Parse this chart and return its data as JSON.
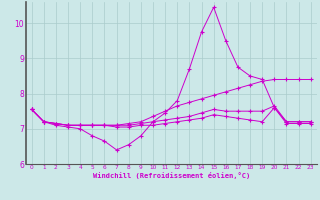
{
  "xlabel": "Windchill (Refroidissement éolien,°C)",
  "bg_color": "#cce8e8",
  "grid_color": "#aacccc",
  "line_color": "#cc00cc",
  "xmin": 0,
  "xmax": 23,
  "ymin": 6,
  "ymax": 10.6,
  "yticks": [
    6,
    7,
    8,
    9,
    10
  ],
  "line1_x": [
    0,
    1,
    2,
    3,
    4,
    5,
    6,
    7,
    8,
    9,
    10,
    11,
    12,
    13,
    14,
    15,
    16,
    17,
    18,
    19,
    20,
    21,
    22,
    23
  ],
  "line1_y": [
    7.55,
    7.2,
    7.1,
    7.05,
    7.0,
    6.8,
    6.65,
    6.4,
    6.55,
    6.8,
    7.2,
    7.45,
    7.8,
    8.7,
    9.75,
    10.45,
    9.5,
    8.75,
    8.5,
    8.4,
    7.6,
    7.2,
    7.2,
    7.2
  ],
  "line2_x": [
    0,
    1,
    2,
    3,
    4,
    5,
    6,
    7,
    8,
    9,
    10,
    11,
    12,
    13,
    14,
    15,
    16,
    17,
    18,
    19,
    20,
    21,
    22,
    23
  ],
  "line2_y": [
    7.55,
    7.2,
    7.15,
    7.1,
    7.1,
    7.1,
    7.1,
    7.1,
    7.15,
    7.2,
    7.35,
    7.5,
    7.65,
    7.75,
    7.85,
    7.95,
    8.05,
    8.15,
    8.25,
    8.35,
    8.4,
    8.4,
    8.4,
    8.4
  ],
  "line3_x": [
    0,
    1,
    2,
    3,
    4,
    5,
    6,
    7,
    8,
    9,
    10,
    11,
    12,
    13,
    14,
    15,
    16,
    17,
    18,
    19,
    20,
    21,
    22,
    23
  ],
  "line3_y": [
    7.55,
    7.2,
    7.15,
    7.1,
    7.1,
    7.1,
    7.1,
    7.1,
    7.1,
    7.15,
    7.2,
    7.25,
    7.3,
    7.35,
    7.45,
    7.55,
    7.5,
    7.5,
    7.5,
    7.5,
    7.65,
    7.2,
    7.2,
    7.2
  ],
  "line4_x": [
    0,
    1,
    2,
    3,
    4,
    5,
    6,
    7,
    8,
    9,
    10,
    11,
    12,
    13,
    14,
    15,
    16,
    17,
    18,
    19,
    20,
    21,
    22,
    23
  ],
  "line4_y": [
    7.55,
    7.2,
    7.15,
    7.1,
    7.1,
    7.1,
    7.1,
    7.05,
    7.05,
    7.1,
    7.1,
    7.15,
    7.2,
    7.25,
    7.3,
    7.4,
    7.35,
    7.3,
    7.25,
    7.2,
    7.6,
    7.15,
    7.15,
    7.15
  ]
}
